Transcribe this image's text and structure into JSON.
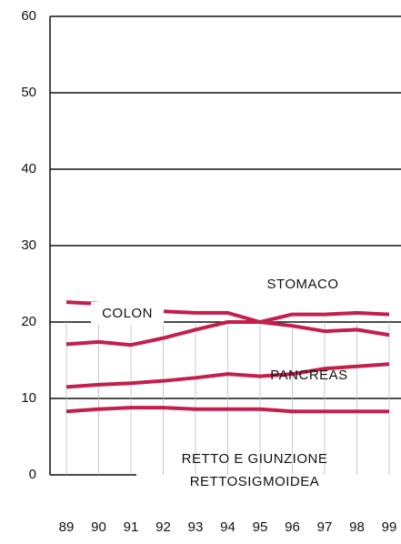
{
  "chart_data": {
    "type": "line",
    "categories": [
      "89",
      "90",
      "91",
      "92",
      "93",
      "94",
      "95",
      "96",
      "97",
      "98",
      "99"
    ],
    "series": [
      {
        "name": "STOMACO",
        "color": "#c41e4a",
        "values": [
          22.6,
          22.4,
          22.1,
          21.4,
          21.2,
          21.2,
          20.0,
          19.5,
          18.8,
          19.0,
          18.3
        ]
      },
      {
        "name": "COLON",
        "color": "#c41e4a",
        "values": [
          17.1,
          17.4,
          17.0,
          17.9,
          19.0,
          20.0,
          20.0,
          21.0,
          21.0,
          21.2,
          21.0
        ]
      },
      {
        "name": "PANCREAS",
        "color": "#c41e4a",
        "values": [
          11.5,
          11.8,
          12.0,
          12.3,
          12.7,
          13.2,
          12.9,
          13.2,
          13.9,
          14.2,
          14.5
        ]
      },
      {
        "name": "RETTO E GIUNZIONE RETTOSIGMOIDEA",
        "color": "#c41e4a",
        "values": [
          8.3,
          8.6,
          8.8,
          8.8,
          8.6,
          8.6,
          8.6,
          8.3,
          8.3,
          8.3,
          8.3
        ]
      }
    ],
    "ylim": [
      0,
      60
    ],
    "yticks": [
      0,
      10,
      20,
      30,
      40,
      50,
      60
    ],
    "grid": true
  }
}
